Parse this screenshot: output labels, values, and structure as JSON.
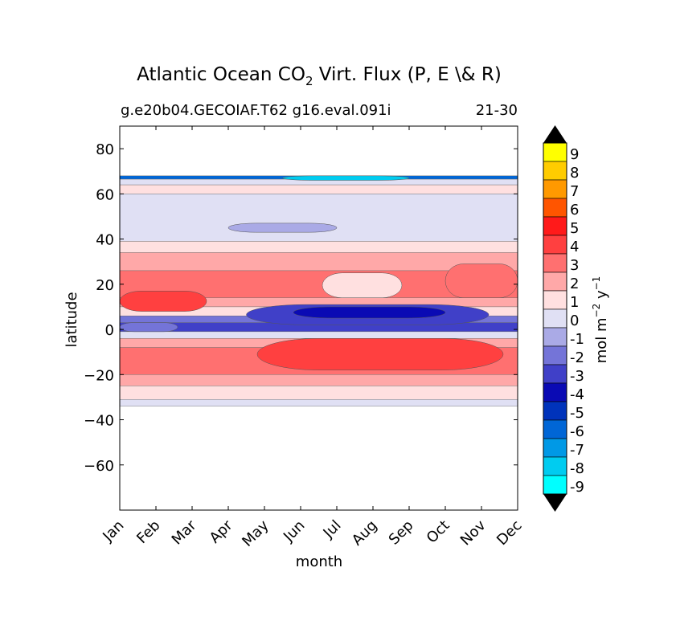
{
  "chart_data": {
    "type": "heatmap",
    "title_main": "Atlantic Ocean CO",
    "title_sub": "2",
    "title_rest": " Virt. Flux (P, E \\& R)",
    "subtitle_left": "g.e20b04.GECOIAF.T62 g16.eval.091i",
    "subtitle_right": "21-30",
    "xlabel": "month",
    "ylabel": "latitude",
    "months": [
      "Jan",
      "Feb",
      "Mar",
      "Apr",
      "May",
      "Jun",
      "Jul",
      "Aug",
      "Sep",
      "Oct",
      "Nov",
      "Dec"
    ],
    "ylim": [
      -80,
      90
    ],
    "yticks": [
      80,
      60,
      40,
      20,
      0,
      -20,
      -40,
      -60
    ],
    "ytick_labels": [
      "80",
      "60",
      "40",
      "20",
      "0",
      "−20",
      "−40",
      "−60"
    ],
    "data_lat_range": [
      -34,
      68
    ],
    "colorbar": {
      "label_main": "mol m",
      "label_exp1": "−2",
      "label_mid": "  y",
      "label_exp2": "−1",
      "levels": [
        {
          "label": "9",
          "color": "#ffff00"
        },
        {
          "label": "8",
          "color": "#ffcc00"
        },
        {
          "label": "7",
          "color": "#ff9900"
        },
        {
          "label": "6",
          "color": "#ff5500"
        },
        {
          "label": "5",
          "color": "#ff1a1a"
        },
        {
          "label": "4",
          "color": "#ff4040"
        },
        {
          "label": "3",
          "color": "#ff7070"
        },
        {
          "label": "2",
          "color": "#ffa8a8"
        },
        {
          "label": "1",
          "color": "#ffe0e0"
        },
        {
          "label": "0",
          "color": "#e0e0f4"
        },
        {
          "label": "-1",
          "color": "#aaaae6"
        },
        {
          "label": "-2",
          "color": "#7474d8"
        },
        {
          "label": "-3",
          "color": "#4040c8"
        },
        {
          "label": "-4",
          "color": "#0a0ab4"
        },
        {
          "label": "-5",
          "color": "#0033bb"
        },
        {
          "label": "-6",
          "color": "#0066d6"
        },
        {
          "label": "-7",
          "color": "#0099e6"
        },
        {
          "label": "-8",
          "color": "#00ccf0"
        },
        {
          "label": "-9",
          "color": "#00ffff"
        }
      ]
    },
    "field_bands": [
      {
        "lat_from": 68,
        "lat_to": 66.5,
        "value": -6
      },
      {
        "lat_from": 66.5,
        "lat_to": 64,
        "value": 0
      },
      {
        "lat_from": 64,
        "lat_to": 60,
        "value": 1
      },
      {
        "lat_from": 60,
        "lat_to": 39,
        "value": 0
      },
      {
        "lat_from": 39,
        "lat_to": 34,
        "value": 1
      },
      {
        "lat_from": 34,
        "lat_to": 26,
        "value": 2
      },
      {
        "lat_from": 26,
        "lat_to": 14,
        "value": 3
      },
      {
        "lat_from": 14,
        "lat_to": 10,
        "value": 2
      },
      {
        "lat_from": 10,
        "lat_to": 6,
        "value": 1
      },
      {
        "lat_from": 6,
        "lat_to": 3,
        "value": -2
      },
      {
        "lat_from": 3,
        "lat_to": -1,
        "value": -3
      },
      {
        "lat_from": -1,
        "lat_to": -4,
        "value": 0
      },
      {
        "lat_from": -4,
        "lat_to": -8,
        "value": 2
      },
      {
        "lat_from": -8,
        "lat_to": -20,
        "value": 3
      },
      {
        "lat_from": -20,
        "lat_to": -25,
        "value": 2
      },
      {
        "lat_from": -25,
        "lat_to": -31,
        "value": 1
      },
      {
        "lat_from": -31,
        "lat_to": -34,
        "value": 0
      }
    ],
    "field_blobs": [
      {
        "month_from": 0,
        "month_to": 2.4,
        "lat_from": 17,
        "lat_to": 8,
        "value": 4
      },
      {
        "month_from": 3.8,
        "month_to": 10.6,
        "lat_from": -4,
        "lat_to": -18,
        "value": 4
      },
      {
        "month_from": 3.5,
        "month_to": 10.2,
        "lat_from": 11,
        "lat_to": 2,
        "value": -3
      },
      {
        "month_from": 4.8,
        "month_to": 9.0,
        "lat_from": 10,
        "lat_to": 5,
        "value": -4
      },
      {
        "month_from": 3.0,
        "month_to": 6.0,
        "lat_from": 47,
        "lat_to": 43,
        "value": -1
      },
      {
        "month_from": 9.0,
        "month_to": 11,
        "lat_from": 29,
        "lat_to": 14,
        "value": 3
      },
      {
        "month_from": 5.6,
        "month_to": 7.8,
        "lat_from": 25,
        "lat_to": 14,
        "value": 1
      },
      {
        "month_from": 0,
        "month_to": 1.6,
        "lat_from": 3,
        "lat_to": -1,
        "value": -2
      },
      {
        "month_from": 4.5,
        "month_to": 8.0,
        "lat_from": 68,
        "lat_to": 66,
        "value": -8
      }
    ]
  }
}
